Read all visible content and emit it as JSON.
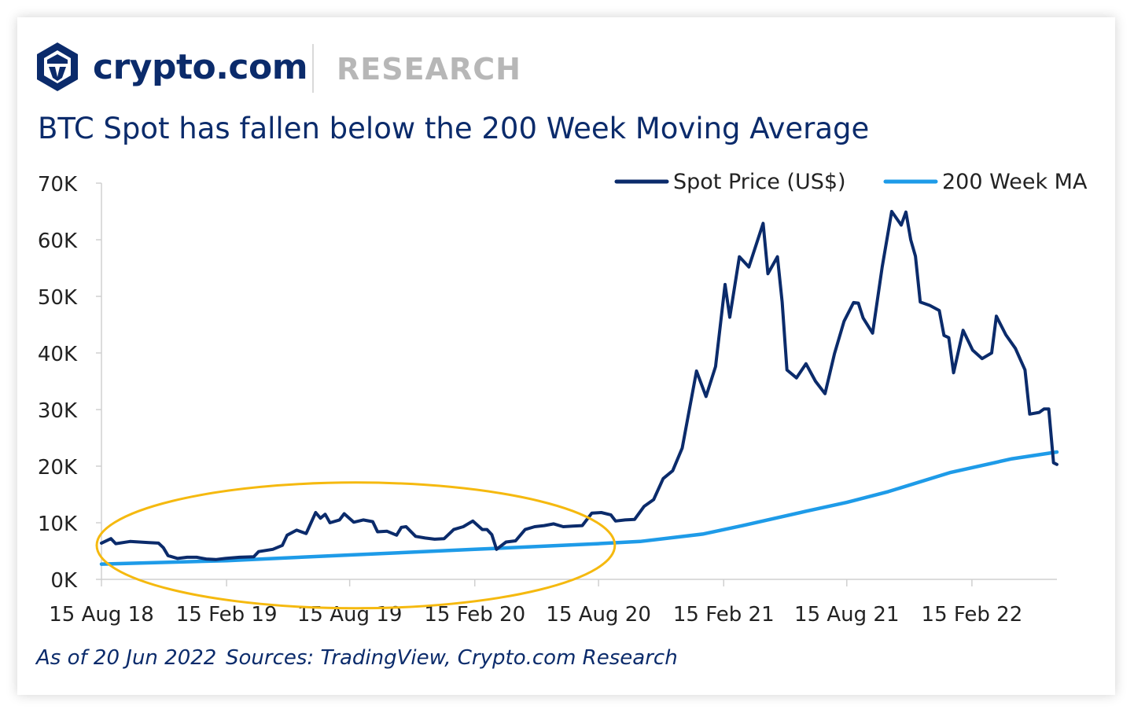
{
  "brand": {
    "name": "crypto.com",
    "section": "RESEARCH"
  },
  "colors": {
    "spot": "#0b2b6b",
    "ma": "#1e9be8",
    "highlight": "#f5b90f",
    "brand": "#0b2b6b"
  },
  "footer": {
    "as_of": "As of 20 Jun 2022",
    "sources": "Sources: TradingView, Crypto.com Research"
  },
  "chart_data": {
    "type": "line",
    "title": "BTC Spot has fallen below the 200 Week Moving Average",
    "xlabel": "",
    "ylabel": "",
    "ylim": [
      0,
      70000
    ],
    "xlim": [
      "2018-08-15",
      "2022-06-20"
    ],
    "grid": false,
    "legend_position": "top-right",
    "y_ticks": [
      {
        "value": 0,
        "label": "0K"
      },
      {
        "value": 10000,
        "label": "10K"
      },
      {
        "value": 20000,
        "label": "20K"
      },
      {
        "value": 30000,
        "label": "30K"
      },
      {
        "value": 40000,
        "label": "40K"
      },
      {
        "value": 50000,
        "label": "50K"
      },
      {
        "value": 60000,
        "label": "60K"
      },
      {
        "value": 70000,
        "label": "70K"
      }
    ],
    "x_ticks": [
      {
        "value": "2018-08-15",
        "label": "15 Aug 18"
      },
      {
        "value": "2019-02-15",
        "label": "15 Feb 19"
      },
      {
        "value": "2019-08-15",
        "label": "15 Aug 19"
      },
      {
        "value": "2020-02-15",
        "label": "15 Feb 20"
      },
      {
        "value": "2020-08-15",
        "label": "15 Aug 20"
      },
      {
        "value": "2021-02-15",
        "label": "15 Feb 21"
      },
      {
        "value": "2021-08-15",
        "label": "15 Aug 21"
      },
      {
        "value": "2022-02-15",
        "label": "15 Feb 22"
      }
    ],
    "annotation": {
      "type": "ellipse",
      "from": "2018-08-15",
      "to": "2020-09-01",
      "y_center": 6000
    },
    "series": [
      {
        "name": "Spot Price (US$)",
        "points": [
          [
            "2018-08-15",
            6400
          ],
          [
            "2018-08-29",
            7200
          ],
          [
            "2018-09-05",
            6300
          ],
          [
            "2018-09-26",
            6700
          ],
          [
            "2018-10-10",
            6600
          ],
          [
            "2018-10-24",
            6500
          ],
          [
            "2018-11-07",
            6400
          ],
          [
            "2018-11-14",
            5600
          ],
          [
            "2018-11-21",
            4200
          ],
          [
            "2018-12-05",
            3700
          ],
          [
            "2018-12-19",
            3900
          ],
          [
            "2019-01-02",
            3900
          ],
          [
            "2019-01-16",
            3600
          ],
          [
            "2019-01-30",
            3500
          ],
          [
            "2019-02-13",
            3700
          ],
          [
            "2019-03-06",
            3900
          ],
          [
            "2019-03-27",
            4000
          ],
          [
            "2019-04-03",
            4900
          ],
          [
            "2019-04-24",
            5300
          ],
          [
            "2019-05-08",
            6000
          ],
          [
            "2019-05-15",
            7800
          ],
          [
            "2019-05-29",
            8700
          ],
          [
            "2019-06-12",
            8100
          ],
          [
            "2019-06-26",
            11800
          ],
          [
            "2019-07-03",
            10800
          ],
          [
            "2019-07-10",
            11500
          ],
          [
            "2019-07-17",
            10000
          ],
          [
            "2019-07-31",
            10500
          ],
          [
            "2019-08-07",
            11600
          ],
          [
            "2019-08-21",
            10100
          ],
          [
            "2019-09-04",
            10500
          ],
          [
            "2019-09-18",
            10200
          ],
          [
            "2019-09-25",
            8400
          ],
          [
            "2019-10-09",
            8500
          ],
          [
            "2019-10-23",
            7800
          ],
          [
            "2019-10-30",
            9200
          ],
          [
            "2019-11-06",
            9300
          ],
          [
            "2019-11-20",
            7600
          ],
          [
            "2019-12-04",
            7300
          ],
          [
            "2019-12-18",
            7100
          ],
          [
            "2020-01-01",
            7200
          ],
          [
            "2020-01-15",
            8800
          ],
          [
            "2020-01-29",
            9300
          ],
          [
            "2020-02-12",
            10300
          ],
          [
            "2020-02-26",
            8800
          ],
          [
            "2020-03-04",
            8800
          ],
          [
            "2020-03-11",
            7900
          ],
          [
            "2020-03-18",
            5300
          ],
          [
            "2020-04-01",
            6600
          ],
          [
            "2020-04-15",
            6800
          ],
          [
            "2020-04-29",
            8800
          ],
          [
            "2020-05-13",
            9300
          ],
          [
            "2020-05-27",
            9500
          ],
          [
            "2020-06-10",
            9800
          ],
          [
            "2020-06-24",
            9300
          ],
          [
            "2020-07-08",
            9400
          ],
          [
            "2020-07-22",
            9500
          ],
          [
            "2020-08-05",
            11700
          ],
          [
            "2020-08-19",
            11800
          ],
          [
            "2020-09-02",
            11400
          ],
          [
            "2020-09-09",
            10300
          ],
          [
            "2020-09-23",
            10500
          ],
          [
            "2020-10-07",
            10600
          ],
          [
            "2020-10-21",
            12900
          ],
          [
            "2020-11-04",
            14100
          ],
          [
            "2020-11-18",
            17800
          ],
          [
            "2020-12-02",
            19200
          ],
          [
            "2020-12-16",
            23200
          ],
          [
            "2021-01-06",
            36800
          ],
          [
            "2021-01-20",
            32300
          ],
          [
            "2021-02-03",
            37600
          ],
          [
            "2021-02-17",
            52100
          ],
          [
            "2021-02-24",
            46300
          ],
          [
            "2021-03-10",
            57000
          ],
          [
            "2021-03-24",
            55200
          ],
          [
            "2021-04-14",
            62900
          ],
          [
            "2021-04-21",
            54000
          ],
          [
            "2021-05-05",
            57000
          ],
          [
            "2021-05-12",
            49000
          ],
          [
            "2021-05-19",
            37000
          ],
          [
            "2021-06-02",
            35600
          ],
          [
            "2021-06-16",
            38100
          ],
          [
            "2021-06-30",
            35000
          ],
          [
            "2021-07-14",
            32800
          ],
          [
            "2021-07-28",
            39900
          ],
          [
            "2021-08-11",
            45600
          ],
          [
            "2021-08-25",
            48900
          ],
          [
            "2021-09-01",
            48800
          ],
          [
            "2021-09-08",
            46200
          ],
          [
            "2021-09-22",
            43500
          ],
          [
            "2021-10-06",
            55200
          ],
          [
            "2021-10-20",
            65000
          ],
          [
            "2021-11-03",
            62600
          ],
          [
            "2021-11-10",
            64900
          ],
          [
            "2021-11-17",
            60000
          ],
          [
            "2021-11-24",
            57100
          ],
          [
            "2021-12-01",
            49000
          ],
          [
            "2021-12-15",
            48400
          ],
          [
            "2021-12-29",
            47500
          ],
          [
            "2022-01-05",
            43100
          ],
          [
            "2022-01-12",
            42700
          ],
          [
            "2022-01-19",
            36500
          ],
          [
            "2022-02-02",
            44000
          ],
          [
            "2022-02-16",
            40500
          ],
          [
            "2022-03-02",
            39000
          ],
          [
            "2022-03-16",
            40000
          ],
          [
            "2022-03-23",
            46500
          ],
          [
            "2022-04-06",
            43200
          ],
          [
            "2022-04-20",
            40800
          ],
          [
            "2022-05-04",
            37000
          ],
          [
            "2022-05-11",
            29200
          ],
          [
            "2022-05-25",
            29500
          ],
          [
            "2022-06-01",
            30100
          ],
          [
            "2022-06-08",
            30100
          ],
          [
            "2022-06-15",
            20600
          ],
          [
            "2022-06-20",
            20300
          ]
        ]
      },
      {
        "name": "200 Week MA",
        "points": [
          [
            "2018-08-15",
            2700
          ],
          [
            "2019-02-15",
            3300
          ],
          [
            "2019-08-15",
            4300
          ],
          [
            "2020-02-15",
            5300
          ],
          [
            "2020-08-15",
            6300
          ],
          [
            "2020-10-15",
            6700
          ],
          [
            "2021-01-15",
            8000
          ],
          [
            "2021-03-15",
            9500
          ],
          [
            "2021-06-15",
            12000
          ],
          [
            "2021-08-15",
            13600
          ],
          [
            "2021-10-15",
            15500
          ],
          [
            "2022-01-15",
            18900
          ],
          [
            "2022-04-15",
            21300
          ],
          [
            "2022-06-20",
            22500
          ]
        ]
      }
    ]
  }
}
